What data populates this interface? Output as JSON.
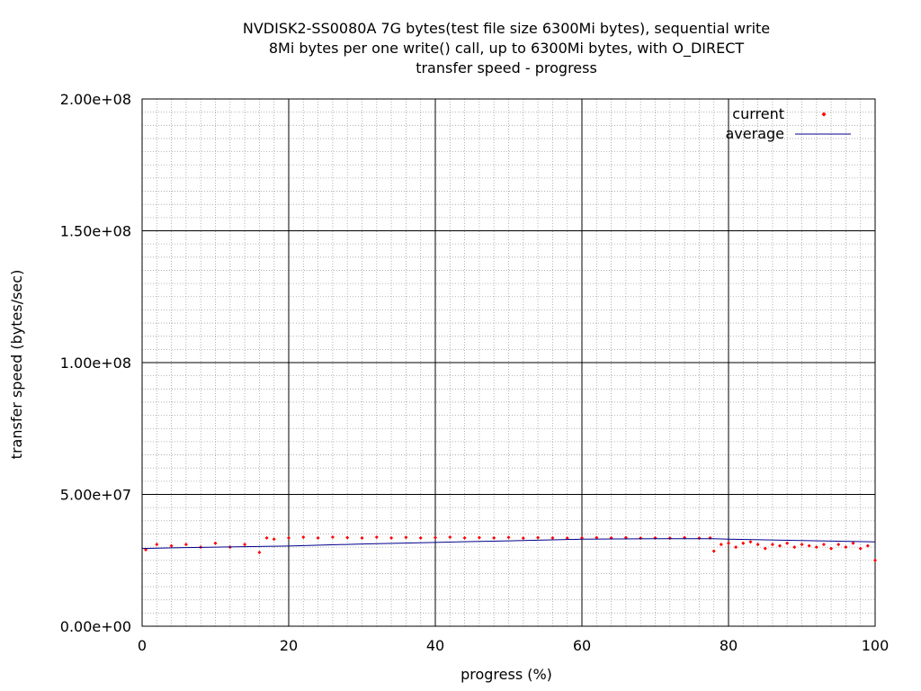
{
  "chart_data": {
    "type": "scatter",
    "title_lines": [
      "NVDISK2-SS0080A 7G bytes(test file size 6300Mi bytes), sequential write",
      "8Mi bytes per one write() call, up to 6300Mi bytes, with O_DIRECT",
      "transfer speed - progress"
    ],
    "xlabel": "progress (%)",
    "ylabel": "transfer speed (bytes/sec)",
    "xlim": [
      0,
      100
    ],
    "ylim": [
      0,
      200000000
    ],
    "x_ticks": [
      0,
      20,
      40,
      60,
      80,
      100
    ],
    "x_tick_labels": [
      "0",
      "20",
      "40",
      "60",
      "80",
      "100"
    ],
    "y_ticks": [
      0,
      50000000,
      100000000,
      150000000,
      200000000
    ],
    "y_tick_labels": [
      "0.00e+00",
      "5.00e+07",
      "1.00e+08",
      "1.50e+08",
      "2.00e+08"
    ],
    "grid": true,
    "legend_position": "top-right",
    "series": [
      {
        "name": "current",
        "style": "points",
        "color": "#ff0000",
        "x": [
          0.5,
          2,
          4,
          6,
          8,
          10,
          12,
          14,
          16,
          17,
          18,
          20,
          22,
          24,
          26,
          28,
          30,
          32,
          34,
          36,
          38,
          40,
          42,
          44,
          46,
          48,
          50,
          52,
          54,
          56,
          58,
          60,
          62,
          64,
          66,
          68,
          70,
          72,
          74,
          76,
          77.5,
          78,
          79,
          80,
          81,
          82,
          83,
          84,
          85,
          86,
          87,
          88,
          89,
          90,
          91,
          92,
          93,
          94,
          95,
          96,
          97,
          98,
          99,
          100
        ],
        "y": [
          29000000,
          31000000,
          30500000,
          31000000,
          30000000,
          31500000,
          30000000,
          31000000,
          28000000,
          33500000,
          33000000,
          33500000,
          33800000,
          33500000,
          33800000,
          33600000,
          33500000,
          33800000,
          33500000,
          33700000,
          33500000,
          33600000,
          33800000,
          33500000,
          33600000,
          33500000,
          33700000,
          33400000,
          33600000,
          33500000,
          33400000,
          33500000,
          33600000,
          33500000,
          33600000,
          33400000,
          33500000,
          33400000,
          33600000,
          33400000,
          33500000,
          28500000,
          31000000,
          31500000,
          30000000,
          31500000,
          32000000,
          31000000,
          29500000,
          31000000,
          30500000,
          31500000,
          30000000,
          31000000,
          30500000,
          30000000,
          31000000,
          29500000,
          31000000,
          30000000,
          31500000,
          29500000,
          30500000,
          25000000
        ]
      },
      {
        "name": "average",
        "style": "line",
        "color": "#00008b",
        "x": [
          0,
          5,
          10,
          20,
          30,
          40,
          50,
          60,
          70,
          78,
          80,
          90,
          100
        ],
        "y": [
          29500000,
          29800000,
          30000000,
          30400000,
          31200000,
          31800000,
          32400000,
          33000000,
          33200000,
          33200000,
          33000000,
          32500000,
          32000000
        ]
      }
    ]
  }
}
